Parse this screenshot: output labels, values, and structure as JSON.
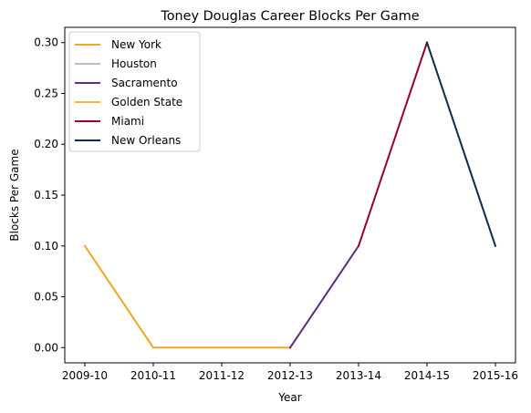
{
  "chart_data": {
    "type": "line",
    "title": "Toney Douglas Career Blocks Per Game",
    "xlabel": "Year",
    "ylabel": "Blocks Per Game",
    "categories": [
      "2009-10",
      "2010-11",
      "2011-12",
      "2012-13",
      "2013-14",
      "2014-15",
      "2015-16"
    ],
    "ylim": [
      -0.015,
      0.315
    ],
    "yticks": [
      0.0,
      0.05,
      0.1,
      0.15,
      0.2,
      0.25,
      0.3
    ],
    "ytick_labels": [
      "0.00",
      "0.05",
      "0.10",
      "0.15",
      "0.20",
      "0.25",
      "0.30"
    ],
    "grid": false,
    "legend_position": "upper-left",
    "series": [
      {
        "name": "New York",
        "color": "#F5A623",
        "points": [
          [
            "2009-10",
            0.1
          ],
          [
            "2010-11",
            0.0
          ],
          [
            "2011-12",
            0.0
          ],
          [
            "2012-13",
            0.0
          ]
        ]
      },
      {
        "name": "Houston",
        "color": "#BEBEBE",
        "points": [
          [
            "2012-13",
            0.0
          ]
        ]
      },
      {
        "name": "Sacramento",
        "color": "#5A2D81",
        "points": [
          [
            "2012-13",
            0.0
          ],
          [
            "2013-14",
            0.1
          ]
        ]
      },
      {
        "name": "Golden State",
        "color": "#FDB927",
        "points": []
      },
      {
        "name": "Miami",
        "color": "#98002E",
        "points": [
          [
            "2013-14",
            0.1
          ],
          [
            "2014-15",
            0.3
          ]
        ]
      },
      {
        "name": "New Orleans",
        "color": "#0C2C56",
        "points": [
          [
            "2014-15",
            0.3
          ],
          [
            "2015-16",
            0.1
          ]
        ]
      }
    ]
  }
}
